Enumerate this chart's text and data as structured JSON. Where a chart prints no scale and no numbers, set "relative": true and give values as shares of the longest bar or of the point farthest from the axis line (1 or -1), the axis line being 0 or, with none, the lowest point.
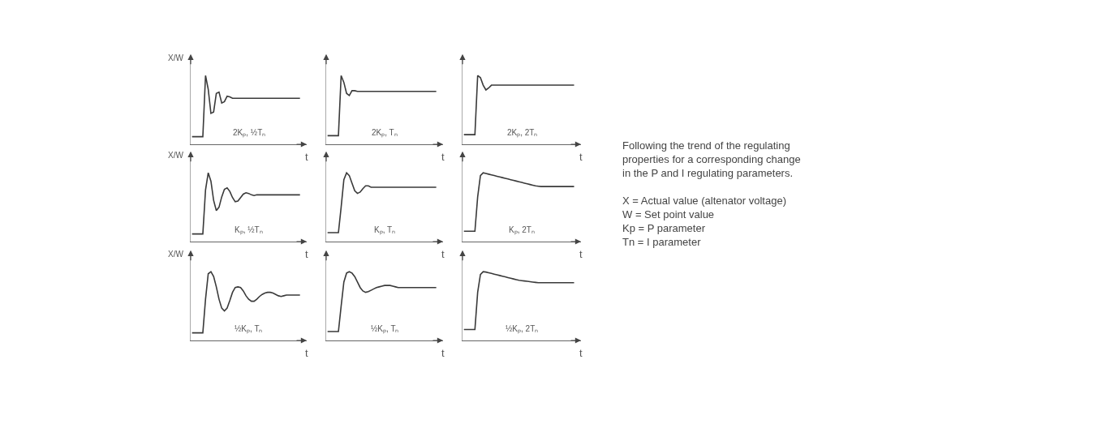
{
  "chart_data": [
    {
      "type": "line",
      "title": "2Kₚ, ½Tₙ",
      "ylabel": "X/W",
      "xlabel": "t",
      "relative": true,
      "color": "#3a3a3a",
      "categories": [
        null,
        null,
        null,
        null,
        null,
        null,
        null,
        null,
        null,
        null,
        null,
        null,
        null,
        null,
        null,
        null,
        null,
        null,
        null,
        null,
        null,
        null,
        null,
        null,
        null,
        null,
        null,
        null,
        null,
        null,
        null,
        null,
        null,
        null,
        null,
        null,
        null,
        null,
        null,
        null,
        null
      ],
      "values": [
        0.11,
        0.11,
        0.11,
        0.11,
        0.11,
        1,
        0.8,
        0.45,
        0.47,
        0.74,
        0.76,
        0.6,
        0.62,
        0.7,
        0.69,
        0.67,
        0.67,
        0.67,
        0.67,
        0.67,
        0.67,
        0.67,
        0.67,
        0.67,
        0.67,
        0.67,
        0.67,
        0.67,
        0.67,
        0.67,
        0.67,
        0.67,
        0.67,
        0.67,
        0.67,
        0.67,
        0.67,
        0.67,
        0.67,
        0.67,
        0.67
      ]
    },
    {
      "type": "line",
      "title": "2Kₚ, Tₙ",
      "xlabel": "t",
      "relative": true,
      "color": "#3a3a3a",
      "categories": [
        null,
        null,
        null,
        null,
        null,
        null,
        null,
        null,
        null,
        null,
        null,
        null,
        null,
        null,
        null,
        null,
        null,
        null,
        null,
        null,
        null,
        null,
        null,
        null,
        null,
        null,
        null,
        null,
        null,
        null,
        null,
        null,
        null,
        null,
        null,
        null,
        null,
        null,
        null,
        null,
        null
      ],
      "values": [
        0.125,
        0.125,
        0.125,
        0.125,
        0.125,
        1,
        0.9,
        0.74,
        0.71,
        0.78,
        0.78,
        0.77,
        0.77,
        0.77,
        0.77,
        0.77,
        0.77,
        0.77,
        0.77,
        0.77,
        0.77,
        0.77,
        0.77,
        0.77,
        0.77,
        0.77,
        0.77,
        0.77,
        0.77,
        0.77,
        0.77,
        0.77,
        0.77,
        0.77,
        0.77,
        0.77,
        0.77,
        0.77,
        0.77,
        0.77,
        0.77
      ]
    },
    {
      "type": "line",
      "title": "2Kₚ, 2Tₙ",
      "xlabel": "t",
      "relative": true,
      "color": "#3a3a3a",
      "categories": [
        null,
        null,
        null,
        null,
        null,
        null,
        null,
        null,
        null,
        null,
        null,
        null,
        null,
        null,
        null,
        null,
        null,
        null,
        null,
        null,
        null,
        null,
        null,
        null,
        null,
        null,
        null,
        null,
        null,
        null,
        null,
        null,
        null,
        null,
        null,
        null,
        null,
        null,
        null,
        null,
        null
      ],
      "values": [
        0.14,
        0.14,
        0.14,
        0.14,
        0.14,
        1,
        0.97,
        0.86,
        0.79,
        0.82,
        0.86,
        0.86,
        0.86,
        0.86,
        0.86,
        0.86,
        0.86,
        0.86,
        0.86,
        0.86,
        0.86,
        0.86,
        0.86,
        0.86,
        0.86,
        0.86,
        0.86,
        0.86,
        0.86,
        0.86,
        0.86,
        0.86,
        0.86,
        0.86,
        0.86,
        0.86,
        0.86,
        0.86,
        0.86,
        0.86,
        0.86
      ]
    },
    {
      "type": "line",
      "title": "Kₚ, ½Tₙ",
      "ylabel": "X/W",
      "xlabel": "t",
      "relative": true,
      "color": "#3a3a3a",
      "categories": [
        null,
        null,
        null,
        null,
        null,
        null,
        null,
        null,
        null,
        null,
        null,
        null,
        null,
        null,
        null,
        null,
        null,
        null,
        null,
        null,
        null,
        null,
        null,
        null,
        null,
        null,
        null,
        null,
        null,
        null,
        null,
        null,
        null,
        null,
        null,
        null,
        null,
        null,
        null,
        null,
        null
      ],
      "values": [
        0.11,
        0.11,
        0.11,
        0.11,
        0.11,
        0.75,
        1,
        0.88,
        0.6,
        0.45,
        0.5,
        0.65,
        0.76,
        0.78,
        0.73,
        0.64,
        0.58,
        0.59,
        0.64,
        0.69,
        0.71,
        0.7,
        0.68,
        0.67,
        0.68,
        0.68,
        0.68,
        0.68,
        0.68,
        0.68,
        0.68,
        0.68,
        0.68,
        0.68,
        0.68,
        0.68,
        0.68,
        0.68,
        0.68,
        0.68,
        0.68
      ]
    },
    {
      "type": "line",
      "title": "Kₚ, Tₙ",
      "xlabel": "t",
      "relative": true,
      "color": "#3a3a3a",
      "categories": [
        null,
        null,
        null,
        null,
        null,
        null,
        null,
        null,
        null,
        null,
        null,
        null,
        null,
        null,
        null,
        null,
        null,
        null,
        null,
        null,
        null,
        null,
        null,
        null,
        null,
        null,
        null,
        null,
        null,
        null,
        null,
        null,
        null,
        null,
        null,
        null,
        null,
        null,
        null,
        null,
        null
      ],
      "values": [
        0.13,
        0.13,
        0.13,
        0.13,
        0.13,
        0.5,
        0.9,
        1,
        0.96,
        0.85,
        0.74,
        0.7,
        0.72,
        0.77,
        0.81,
        0.81,
        0.79,
        0.79,
        0.79,
        0.79,
        0.79,
        0.79,
        0.79,
        0.79,
        0.79,
        0.79,
        0.79,
        0.79,
        0.79,
        0.79,
        0.79,
        0.79,
        0.79,
        0.79,
        0.79,
        0.79,
        0.79,
        0.79,
        0.79,
        0.79,
        0.79
      ]
    },
    {
      "type": "line",
      "title": "Kₚ, 2Tₙ",
      "xlabel": "t",
      "relative": true,
      "color": "#3a3a3a",
      "categories": [
        null,
        null,
        null,
        null,
        null,
        null,
        null,
        null,
        null,
        null,
        null,
        null,
        null,
        null,
        null,
        null,
        null,
        null,
        null,
        null,
        null,
        null,
        null,
        null,
        null,
        null,
        null,
        null,
        null,
        null,
        null,
        null,
        null,
        null,
        null,
        null,
        null,
        null,
        null,
        null,
        null
      ],
      "values": [
        0.15,
        0.15,
        0.15,
        0.15,
        0.15,
        0.65,
        0.96,
        1,
        0.99,
        0.98,
        0.97,
        0.96,
        0.95,
        0.94,
        0.93,
        0.92,
        0.91,
        0.9,
        0.89,
        0.88,
        0.87,
        0.86,
        0.85,
        0.84,
        0.83,
        0.82,
        0.81,
        0.805,
        0.8,
        0.8,
        0.8,
        0.8,
        0.8,
        0.8,
        0.8,
        0.8,
        0.8,
        0.8,
        0.8,
        0.8,
        0.8
      ]
    },
    {
      "type": "line",
      "title": "½Kₚ, Tₙ",
      "ylabel": "X/W",
      "xlabel": "t",
      "relative": true,
      "color": "#3a3a3a",
      "categories": [
        null,
        null,
        null,
        null,
        null,
        null,
        null,
        null,
        null,
        null,
        null,
        null,
        null,
        null,
        null,
        null,
        null,
        null,
        null,
        null,
        null,
        null,
        null,
        null,
        null,
        null,
        null,
        null,
        null,
        null,
        null,
        null,
        null,
        null,
        null,
        null,
        null,
        null,
        null,
        null,
        null
      ],
      "values": [
        0.11,
        0.11,
        0.11,
        0.11,
        0.11,
        0.6,
        0.97,
        1,
        0.93,
        0.78,
        0.6,
        0.47,
        0.43,
        0.47,
        0.58,
        0.7,
        0.77,
        0.78,
        0.77,
        0.72,
        0.65,
        0.6,
        0.57,
        0.57,
        0.6,
        0.64,
        0.67,
        0.69,
        0.7,
        0.7,
        0.69,
        0.67,
        0.65,
        0.64,
        0.65,
        0.66,
        0.66,
        0.66,
        0.66,
        0.66,
        0.66
      ]
    },
    {
      "type": "line",
      "title": "½Kₚ, Tₙ",
      "xlabel": "t",
      "relative": true,
      "color": "#3a3a3a",
      "categories": [
        null,
        null,
        null,
        null,
        null,
        null,
        null,
        null,
        null,
        null,
        null,
        null,
        null,
        null,
        null,
        null,
        null,
        null,
        null,
        null,
        null,
        null,
        null,
        null,
        null,
        null,
        null,
        null,
        null,
        null,
        null,
        null,
        null,
        null,
        null,
        null,
        null,
        null,
        null,
        null,
        null
      ],
      "values": [
        0.13,
        0.13,
        0.13,
        0.13,
        0.13,
        0.5,
        0.85,
        0.98,
        1,
        0.98,
        0.93,
        0.85,
        0.77,
        0.72,
        0.7,
        0.71,
        0.73,
        0.75,
        0.77,
        0.78,
        0.79,
        0.8,
        0.8,
        0.8,
        0.79,
        0.78,
        0.77,
        0.77,
        0.77,
        0.77,
        0.77,
        0.77,
        0.77,
        0.77,
        0.77,
        0.77,
        0.77,
        0.77,
        0.77,
        0.77,
        0.77
      ]
    },
    {
      "type": "line",
      "title": "½Kₚ, 2Tₙ",
      "xlabel": "t",
      "relative": true,
      "color": "#3a3a3a",
      "categories": [
        null,
        null,
        null,
        null,
        null,
        null,
        null,
        null,
        null,
        null,
        null,
        null,
        null,
        null,
        null,
        null,
        null,
        null,
        null,
        null,
        null,
        null,
        null,
        null,
        null,
        null,
        null,
        null,
        null,
        null,
        null,
        null,
        null,
        null,
        null,
        null,
        null,
        null,
        null,
        null,
        null
      ],
      "values": [
        0.16,
        0.16,
        0.16,
        0.16,
        0.16,
        0.7,
        0.96,
        1,
        0.995,
        0.985,
        0.975,
        0.965,
        0.955,
        0.945,
        0.935,
        0.925,
        0.915,
        0.905,
        0.895,
        0.885,
        0.875,
        0.87,
        0.865,
        0.86,
        0.855,
        0.85,
        0.845,
        0.84,
        0.84,
        0.84,
        0.84,
        0.84,
        0.84,
        0.84,
        0.84,
        0.84,
        0.84,
        0.84,
        0.84,
        0.84,
        0.84
      ]
    },
    {
      "type": "other",
      "annotations": [
        "Following the trend of the regulating properties for a corresponding change in the P and I regulating parameters.",
        "X = Actual value (altenator voltage)",
        "W = Set point value",
        "Kp = P parameter",
        "Tn = I parameter"
      ]
    }
  ]
}
